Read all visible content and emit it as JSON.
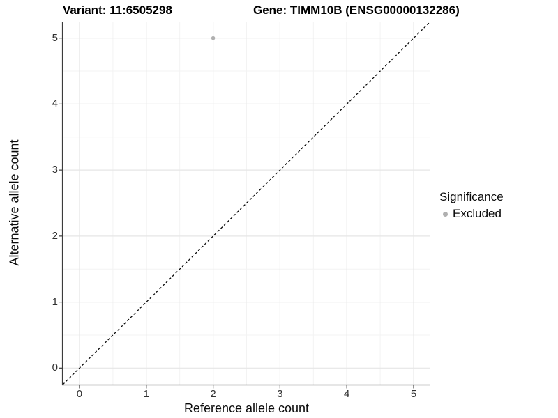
{
  "header": {
    "title_left": "Variant: 11:6505298",
    "title_right": "Gene: TIMM10B (ENSG00000132286)"
  },
  "legend": {
    "title": "Significance",
    "items": [
      {
        "label": "Excluded",
        "color": "#b0b0b0"
      }
    ]
  },
  "chart_data": {
    "type": "scatter",
    "titles": [
      "Variant: 11:6505298",
      "Gene: TIMM10B (ENSG00000132286)"
    ],
    "xlabel": "Reference allele count",
    "ylabel": "Alternative allele count",
    "xlim": [
      -0.25,
      5.25
    ],
    "ylim": [
      -0.25,
      5.25
    ],
    "xticks": [
      0,
      1,
      2,
      3,
      4,
      5
    ],
    "yticks": [
      0,
      1,
      2,
      3,
      4,
      5
    ],
    "grid": "major+minor",
    "legend_position": "right",
    "series": [
      {
        "name": "Excluded",
        "color": "#b0b0b0",
        "points": [
          {
            "x": 2,
            "y": 5
          }
        ]
      }
    ],
    "reference_line": {
      "type": "identity",
      "style": "dashed",
      "color": "#0a0a0a",
      "from": [
        -0.25,
        -0.25
      ],
      "to": [
        5.25,
        5.25
      ]
    }
  },
  "colors": {
    "background": "#ffffff",
    "grid_major": "#e6e6e6",
    "grid_minor": "#f3f3f3",
    "axis_line": "#3c3c3c",
    "tick_text": "#303030",
    "point": "#b0b0b0"
  }
}
